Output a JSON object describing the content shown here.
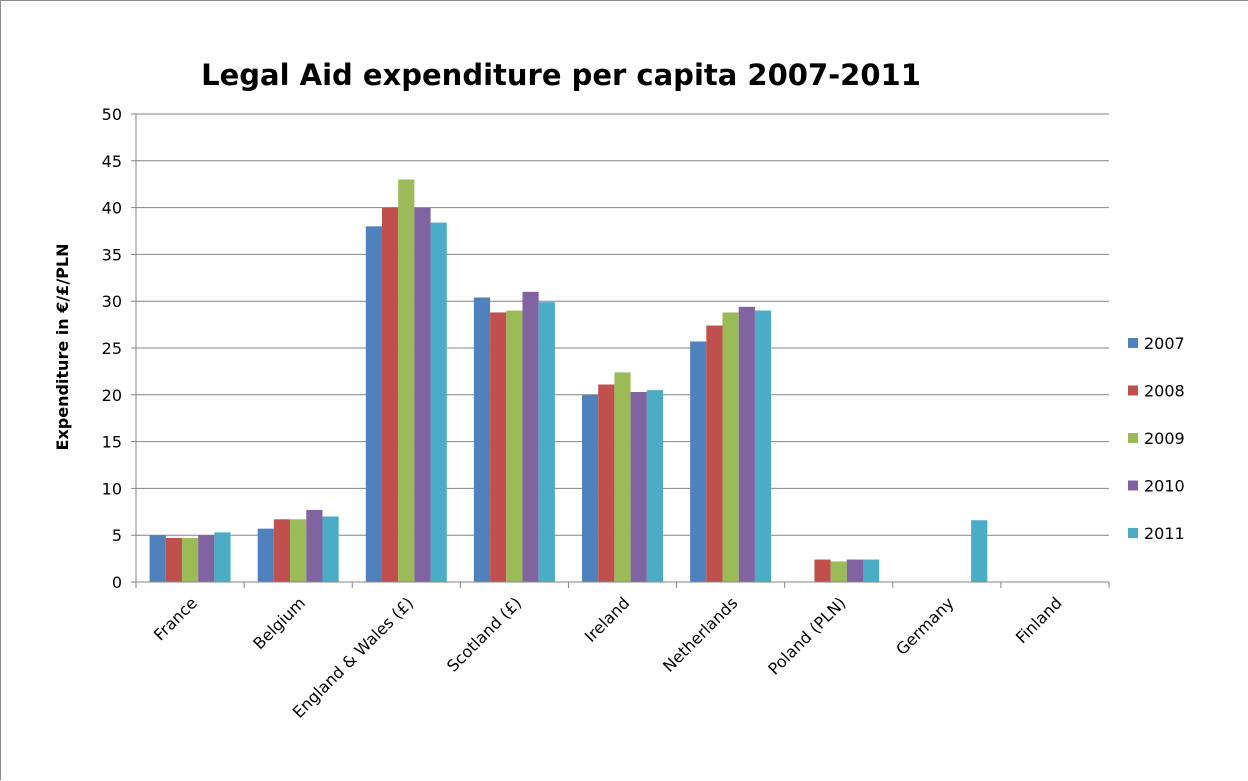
{
  "chart_data": {
    "type": "bar",
    "title": "Legal Aid expenditure per capita 2007-2011",
    "xlabel": "",
    "ylabel": "Expenditure in €/£/PLN",
    "ylim": [
      0,
      50
    ],
    "yticks": [
      0,
      5,
      10,
      15,
      20,
      25,
      30,
      35,
      40,
      45,
      50
    ],
    "grid": true,
    "legend_position": "right",
    "categories": [
      "France",
      "Belgium",
      "England & Wales (£)",
      "Scotland (£)",
      "Ireland",
      "Netherlands",
      "Poland (PLN)",
      "Germany",
      "Finland"
    ],
    "series": [
      {
        "name": "2007",
        "color": "#4F81BD",
        "values": [
          5.0,
          5.7,
          38.0,
          30.4,
          20.0,
          25.7,
          null,
          null,
          null
        ]
      },
      {
        "name": "2008",
        "color": "#C0504D",
        "values": [
          4.7,
          6.7,
          40.0,
          28.8,
          21.1,
          27.4,
          2.4,
          null,
          null
        ]
      },
      {
        "name": "2009",
        "color": "#9BBB59",
        "values": [
          4.7,
          6.7,
          43.0,
          29.0,
          22.4,
          28.8,
          2.2,
          null,
          null
        ]
      },
      {
        "name": "2010",
        "color": "#8064A2",
        "values": [
          5.0,
          7.7,
          40.0,
          31.0,
          20.3,
          29.4,
          2.4,
          null,
          null
        ]
      },
      {
        "name": "2011",
        "color": "#4BACC6",
        "values": [
          5.3,
          7.0,
          38.4,
          29.9,
          20.5,
          29.0,
          2.4,
          6.6,
          null
        ]
      }
    ]
  }
}
